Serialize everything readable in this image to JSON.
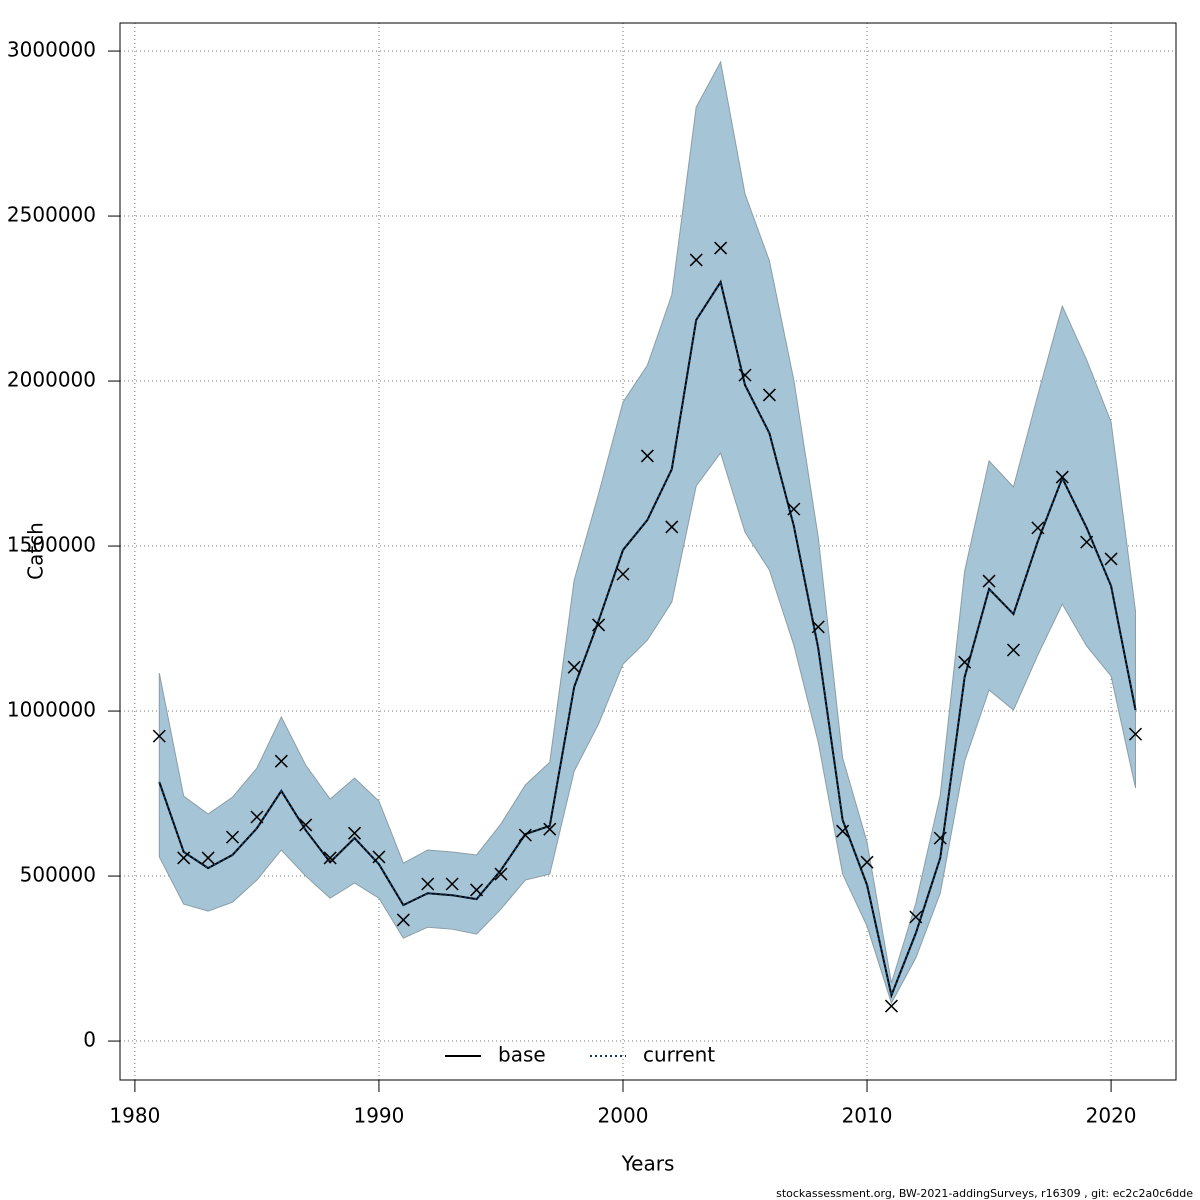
{
  "chart_data": {
    "type": "line",
    "x_label": "Years",
    "y_label": "Catch",
    "footer": "stockassessment.org, BW-2021-addingSurveys, r16309 , git: ec2c2a0c6dde",
    "x": [
      1981,
      1982,
      1983,
      1984,
      1985,
      1986,
      1987,
      1988,
      1989,
      1990,
      1991,
      1992,
      1993,
      1994,
      1995,
      1996,
      1997,
      1998,
      1999,
      2000,
      2001,
      2002,
      2003,
      2004,
      2005,
      2006,
      2007,
      2008,
      2009,
      2010,
      2011,
      2012,
      2013,
      2014,
      2015,
      2016,
      2017,
      2018,
      2019,
      2020,
      2021
    ],
    "band": {
      "color": "#a5c4d6",
      "low": [
        558000,
        415000,
        394000,
        421000,
        488000,
        579000,
        500000,
        433000,
        479000,
        433000,
        312000,
        345000,
        339000,
        324000,
        400000,
        488000,
        506000,
        818000,
        961000,
        1142000,
        1215000,
        1330000,
        1682000,
        1782000,
        1542000,
        1427000,
        1200000,
        906000,
        506000,
        348000,
        115000,
        252000,
        448000,
        848000,
        1064000,
        1003000,
        1170000,
        1324000,
        1197000,
        1106000,
        767000
      ],
      "high": [
        1115000,
        742000,
        688000,
        739000,
        827000,
        982000,
        836000,
        733000,
        797000,
        727000,
        539000,
        579000,
        573000,
        564000,
        658000,
        776000,
        845000,
        1397000,
        1658000,
        1936000,
        2048000,
        2261000,
        2830000,
        2967000,
        2567000,
        2364000,
        2003000,
        1527000,
        858000,
        603000,
        176000,
        418000,
        745000,
        1424000,
        1758000,
        1679000,
        1958000,
        2227000,
        2064000,
        1876000,
        1303000
      ]
    },
    "series": [
      {
        "name": "base",
        "color": "#000000",
        "dash": false,
        "values": [
          785000,
          573000,
          524000,
          564000,
          645000,
          758000,
          639000,
          542000,
          615000,
          536000,
          412000,
          448000,
          442000,
          430000,
          518000,
          627000,
          652000,
          1073000,
          1273000,
          1488000,
          1579000,
          1733000,
          2185000,
          2300000,
          1988000,
          1842000,
          1561000,
          1191000,
          670000,
          473000,
          139000,
          327000,
          555000,
          1103000,
          1370000,
          1294000,
          1515000,
          1706000,
          1555000,
          1379000,
          1003000
        ]
      },
      {
        "name": "current",
        "color": "#0b3d66",
        "dash": true,
        "values": [
          785000,
          573000,
          524000,
          564000,
          645000,
          758000,
          639000,
          542000,
          615000,
          536000,
          412000,
          448000,
          442000,
          430000,
          518000,
          627000,
          652000,
          1073000,
          1273000,
          1488000,
          1579000,
          1733000,
          2185000,
          2300000,
          1988000,
          1842000,
          1561000,
          1191000,
          670000,
          473000,
          139000,
          327000,
          555000,
          1103000,
          1370000,
          1294000,
          1515000,
          1706000,
          1555000,
          1379000,
          1003000
        ]
      }
    ],
    "observations": {
      "color": "#000000",
      "values": [
        924000,
        555000,
        555000,
        618000,
        679000,
        848000,
        655000,
        555000,
        630000,
        558000,
        367000,
        476000,
        476000,
        458000,
        506000,
        624000,
        642000,
        1133000,
        1261000,
        1415000,
        1773000,
        1558000,
        2367000,
        2403000,
        2018000,
        1958000,
        1612000,
        1255000,
        636000,
        542000,
        106000,
        376000,
        615000,
        1148000,
        1394000,
        1185000,
        1555000,
        1709000,
        1512000,
        1461000,
        930000
      ]
    },
    "xlim": [
      1979.39,
      2022.66
    ],
    "ylim": [
      -118000,
      3085000
    ],
    "xticks": [
      1980,
      1990,
      2000,
      2010,
      2020
    ],
    "yticks": [
      0,
      500000,
      1000000,
      1500000,
      2000000,
      2500000,
      3000000
    ],
    "grid": true,
    "legend": "bottom"
  }
}
